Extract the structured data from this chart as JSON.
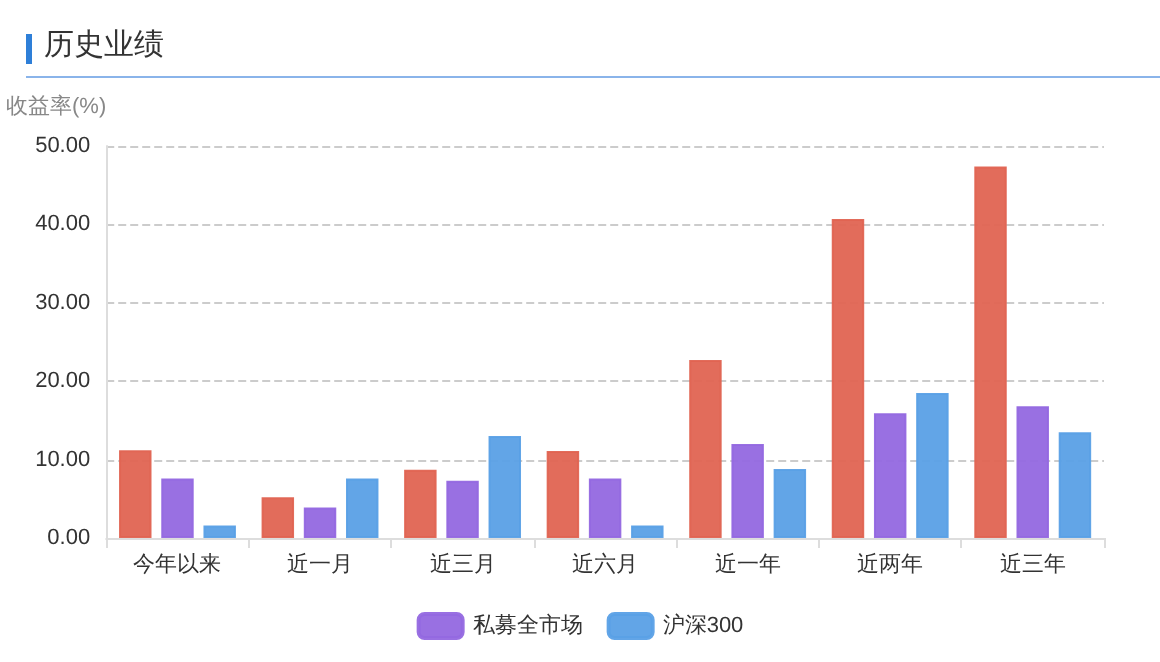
{
  "chart_data": {
    "type": "bar",
    "title": "历史业绩",
    "ylabel": "收益率(%)",
    "categories": [
      "今年以来",
      "近一月",
      "近三月",
      "近六月",
      "近一年",
      "近两年",
      "近三年"
    ],
    "series": [
      {
        "color": "#e06452",
        "values": [
          11.2,
          5.2,
          8.7,
          11.1,
          22.7,
          40.7,
          47.4
        ]
      },
      {
        "name": "私募全市场",
        "color": "#9468e0",
        "values": [
          7.6,
          3.9,
          7.3,
          7.6,
          12.0,
          15.9,
          16.8
        ]
      },
      {
        "name": "沪深300",
        "color": "#5aa0e6",
        "values": [
          1.6,
          7.6,
          13.0,
          1.6,
          8.8,
          18.5,
          13.5
        ]
      }
    ],
    "ylim": [
      0,
      50
    ],
    "yticks": [
      {
        "value": 0,
        "label": "0.00"
      },
      {
        "value": 10,
        "label": "10.00"
      },
      {
        "value": 20,
        "label": "20.00"
      },
      {
        "value": 30,
        "label": "30.00"
      },
      {
        "value": 40,
        "label": "40.00"
      },
      {
        "value": 50,
        "label": "50.00"
      }
    ],
    "grid": "y",
    "legend": "bottom"
  }
}
